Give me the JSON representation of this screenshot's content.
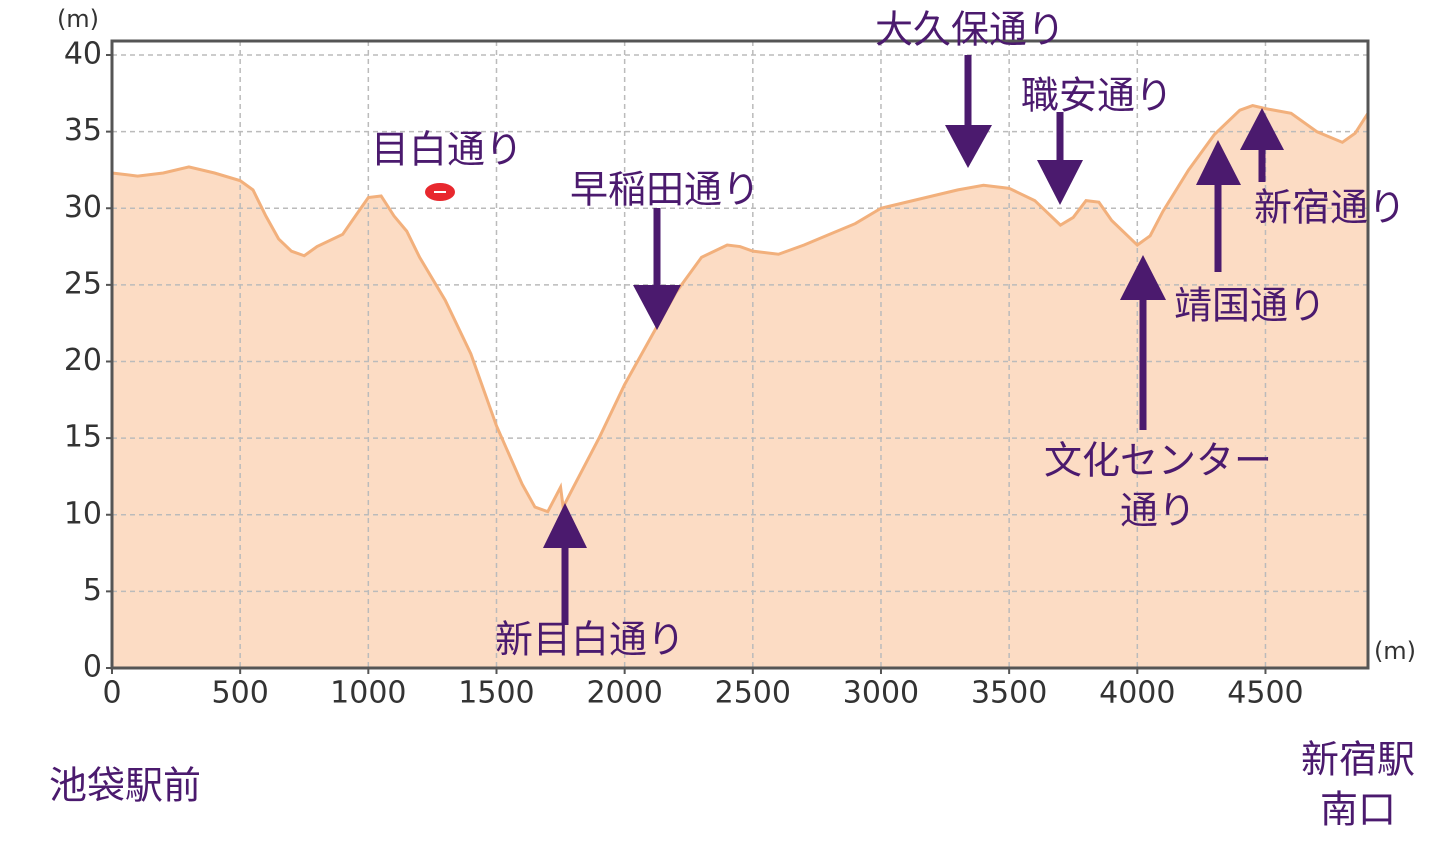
{
  "chart_data": {
    "type": "area",
    "x": [
      0,
      100,
      200,
      300,
      400,
      500,
      550,
      600,
      650,
      700,
      750,
      800,
      900,
      950,
      1000,
      1050,
      1100,
      1150,
      1200,
      1300,
      1400,
      1500,
      1600,
      1650,
      1700,
      1750,
      1760,
      1800,
      1900,
      2000,
      2100,
      2200,
      2300,
      2400,
      2450,
      2500,
      2600,
      2700,
      2800,
      2900,
      3000,
      3100,
      3200,
      3300,
      3400,
      3500,
      3600,
      3700,
      3750,
      3800,
      3850,
      3900,
      4000,
      4050,
      4100,
      4200,
      4300,
      4400,
      4450,
      4500,
      4600,
      4700,
      4800,
      4850,
      4900
    ],
    "values": [
      32.3,
      32.1,
      32.3,
      32.7,
      32.3,
      31.8,
      31.2,
      29.5,
      28,
      27.2,
      26.9,
      27.5,
      28.3,
      29.5,
      30.7,
      30.8,
      29.5,
      28.5,
      26.8,
      24,
      20.5,
      15.8,
      12,
      10.5,
      10.2,
      11.8,
      10.5,
      11.8,
      15,
      18.5,
      21.5,
      24.5,
      26.8,
      27.6,
      27.5,
      27.2,
      27,
      27.6,
      28.3,
      29,
      30,
      30.4,
      30.8,
      31.2,
      31.5,
      31.3,
      30.5,
      28.9,
      29.4,
      30.5,
      30.4,
      29.2,
      27.6,
      28.2,
      29.8,
      32.5,
      34.8,
      36.4,
      36.7,
      36.5,
      36.2,
      35,
      34.3,
      34.9,
      36.2
    ],
    "xlim": [
      0,
      4900
    ],
    "ylim": [
      0,
      40
    ],
    "xticks": [
      0,
      500,
      1000,
      1500,
      2000,
      2500,
      3000,
      3500,
      4000,
      4500
    ],
    "yticks": [
      0,
      5,
      10,
      15,
      20,
      25,
      30,
      35,
      40
    ],
    "x_unit": "(m)",
    "y_unit": "(m)",
    "grid": true,
    "color": "#fcdcc4",
    "line_color": "#f2b07c",
    "annotations": [
      "目白通り",
      "早稲田通り",
      "新目白通り",
      "大久保通り",
      "職安通り",
      [
        "文化センター",
        "通り"
      ],
      "靖国通り",
      "新宿通り"
    ],
    "start_label": "池袋駅前",
    "end_label": [
      "新宿駅",
      "南口"
    ]
  }
}
